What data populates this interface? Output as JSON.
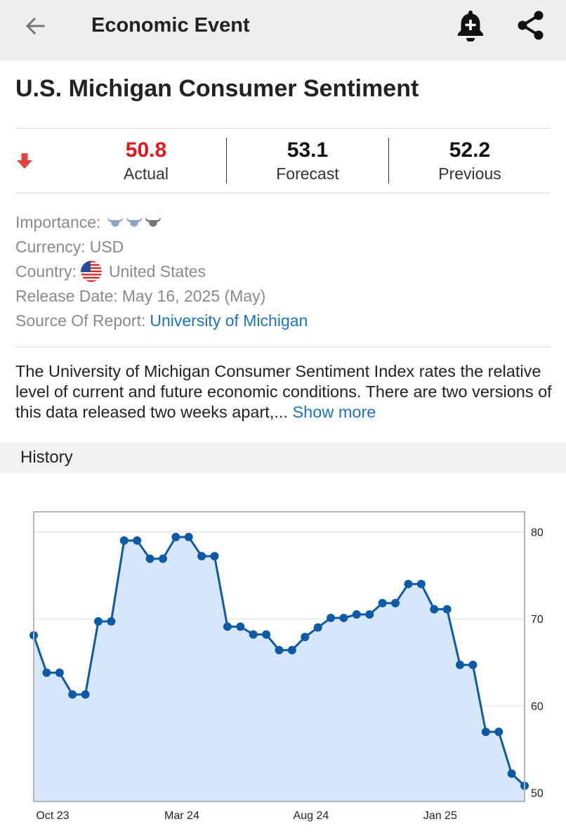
{
  "header": {
    "title": "Economic Event",
    "back_icon": "arrow-left-icon",
    "alert_icon": "bell-plus-icon",
    "share_icon": "share-icon"
  },
  "event": {
    "title": "U.S. Michigan Consumer Sentiment",
    "direction_icon": "arrow-down-icon",
    "actual_value": "50.8",
    "actual_label": "Actual",
    "forecast_value": "53.1",
    "forecast_label": "Forecast",
    "previous_value": "52.2",
    "previous_label": "Previous"
  },
  "details": {
    "importance_label": "Importance:",
    "importance_level": 2,
    "importance_max": 3,
    "currency_label": "Currency:",
    "currency_value": "USD",
    "country_label": "Country:",
    "country_value": "United States",
    "release_label": "Release Date:",
    "release_value": "May 16, 2025 (May)",
    "source_label": "Source Of Report:",
    "source_value": "University of Michigan"
  },
  "description": {
    "text": "The University of Michigan Consumer Sentiment Index rates the relative level of current and future economic conditions. There are two versions of this data released two weeks apart,...",
    "show_more": "Show more"
  },
  "history": {
    "title": "History"
  },
  "colors": {
    "actual_red": "#e2161e",
    "link_blue": "#1a73c8",
    "line_blue": "#0d5aa7",
    "area_fill": "#d6e6fb"
  },
  "chart_data": {
    "type": "area",
    "x_tick_labels": [
      "Oct 23",
      "Mar 24",
      "Aug 24",
      "Jan 25"
    ],
    "y_tick_labels": [
      "50",
      "60",
      "70",
      "80"
    ],
    "ylim": [
      49,
      82.3
    ],
    "values": [
      68.1,
      63.8,
      63.8,
      61.3,
      61.3,
      69.7,
      69.7,
      79.0,
      79.0,
      76.9,
      76.9,
      79.4,
      79.4,
      77.2,
      77.2,
      69.1,
      69.1,
      68.2,
      68.2,
      66.4,
      66.4,
      67.9,
      69.0,
      70.1,
      70.1,
      70.5,
      70.5,
      71.8,
      71.8,
      74.0,
      74.0,
      71.1,
      71.1,
      64.7,
      64.7,
      57.0,
      57.0,
      52.2,
      50.8
    ],
    "grid": true,
    "y_axis_position": "right"
  }
}
